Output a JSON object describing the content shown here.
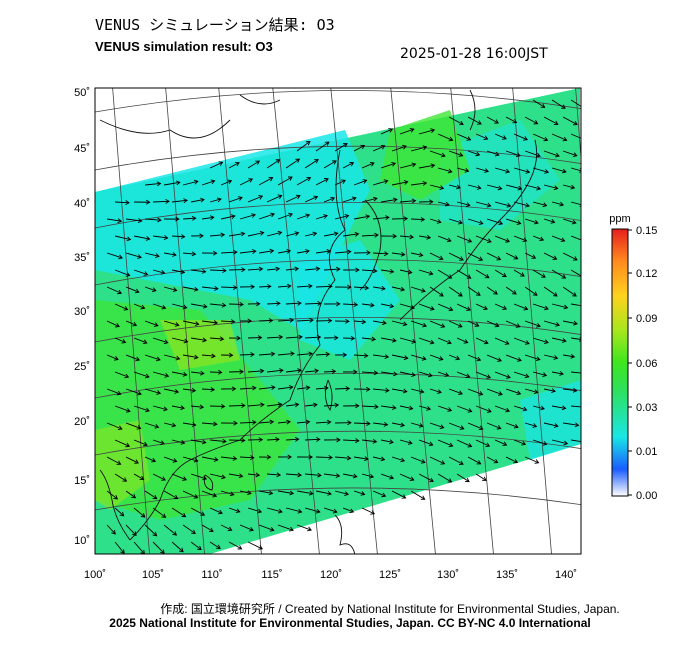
{
  "header": {
    "title_jp": "VENUS シミュレーション結果: O3",
    "title_en": "VENUS simulation result: O3",
    "timestamp": "2025-01-28 16:00JST"
  },
  "map": {
    "lon_ticks": [
      "100˚",
      "105˚",
      "110˚",
      "115˚",
      "120˚",
      "125˚",
      "130˚",
      "135˚",
      "140˚"
    ],
    "lat_ticks": [
      "50˚",
      "45˚",
      "40˚",
      "35˚",
      "30˚",
      "25˚",
      "20˚",
      "15˚",
      "10˚"
    ],
    "field_colors": {
      "cyan": "#19e6e6",
      "light_green": "#2fe08a",
      "green": "#3ee635",
      "yellow_green": "#8ee61e"
    }
  },
  "colorbar": {
    "unit": "ppm",
    "ticks": [
      "0.15",
      "0.12",
      "0.09",
      "0.06",
      "0.03",
      "0.01",
      "0.00"
    ],
    "colors": [
      "#ffffff",
      "#1a5cff",
      "#19e6e6",
      "#2fe05a",
      "#3ee61e",
      "#a8e61e",
      "#ffd21e",
      "#ff8a1e",
      "#e61e1e"
    ]
  },
  "footer": {
    "credit_line1": "作成: 国立環境研究所 / Created by National Institute for Environmental Studies, Japan.",
    "credit_line2": "2025 National Institute for Environmental Studies, Japan. CC BY-NC 4.0 International"
  }
}
